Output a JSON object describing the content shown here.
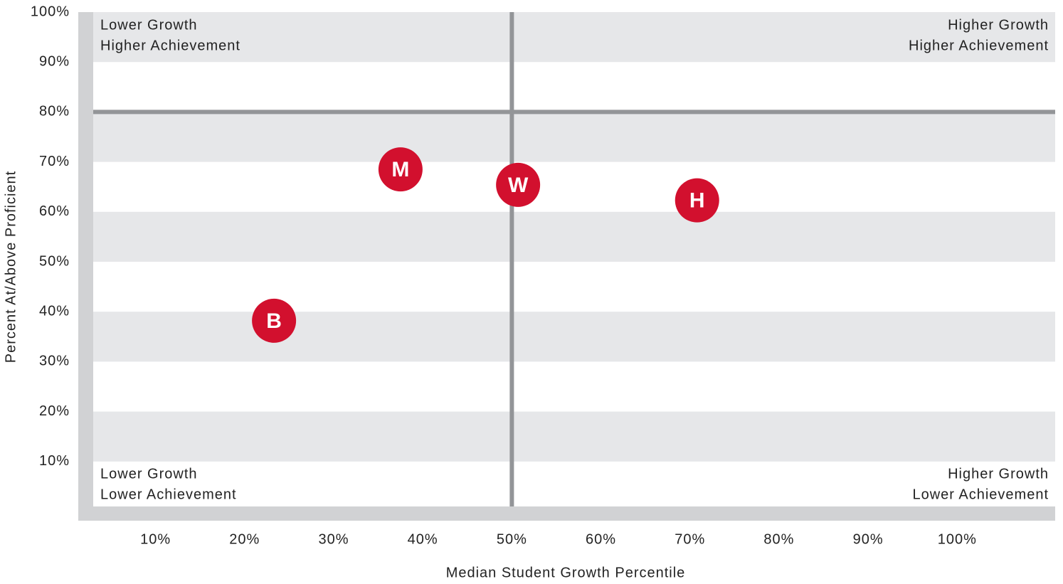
{
  "chart_data": {
    "type": "scatter",
    "x_label": "Median Student Growth Percentile",
    "y_label": "Percent At/Above Proficient",
    "xlim": [
      3,
      111
    ],
    "ylim": [
      1,
      100
    ],
    "xticks": [
      {
        "value": 10,
        "label": "10%"
      },
      {
        "value": 20,
        "label": "20%"
      },
      {
        "value": 30,
        "label": "30%"
      },
      {
        "value": 40,
        "label": "40%"
      },
      {
        "value": 50,
        "label": "50%"
      },
      {
        "value": 60,
        "label": "60%"
      },
      {
        "value": 70,
        "label": "70%"
      },
      {
        "value": 80,
        "label": "80%"
      },
      {
        "value": 90,
        "label": "90%"
      },
      {
        "value": 100,
        "label": "100%"
      }
    ],
    "yticks": [
      {
        "value": 10,
        "label": "10%"
      },
      {
        "value": 20,
        "label": "20%"
      },
      {
        "value": 30,
        "label": "30%"
      },
      {
        "value": 40,
        "label": "40%"
      },
      {
        "value": 50,
        "label": "50%"
      },
      {
        "value": 60,
        "label": "60%"
      },
      {
        "value": 70,
        "label": "70%"
      },
      {
        "value": 80,
        "label": "80%"
      },
      {
        "value": 90,
        "label": "90%"
      },
      {
        "value": 100,
        "label": "100%"
      }
    ],
    "quadrant_lines": {
      "x": 50,
      "y": 80
    },
    "series": [
      {
        "color": "#d2102e",
        "labels": [
          "B",
          "M",
          "W",
          "H"
        ],
        "x": [
          23.3,
          37.5,
          50.7,
          70.8
        ],
        "values": [
          38.2,
          68.5,
          65.4,
          62.3
        ]
      }
    ],
    "annotations": [
      {
        "lines": [
          "Lower Growth",
          "Higher Achievement"
        ]
      },
      {
        "lines": [
          "Higher Growth",
          "Higher Achievement"
        ]
      },
      {
        "lines": [
          "Lower Growth",
          "Lower Achievement"
        ]
      },
      {
        "lines": [
          "Higher Growth",
          "Lower Achievement"
        ]
      }
    ]
  }
}
